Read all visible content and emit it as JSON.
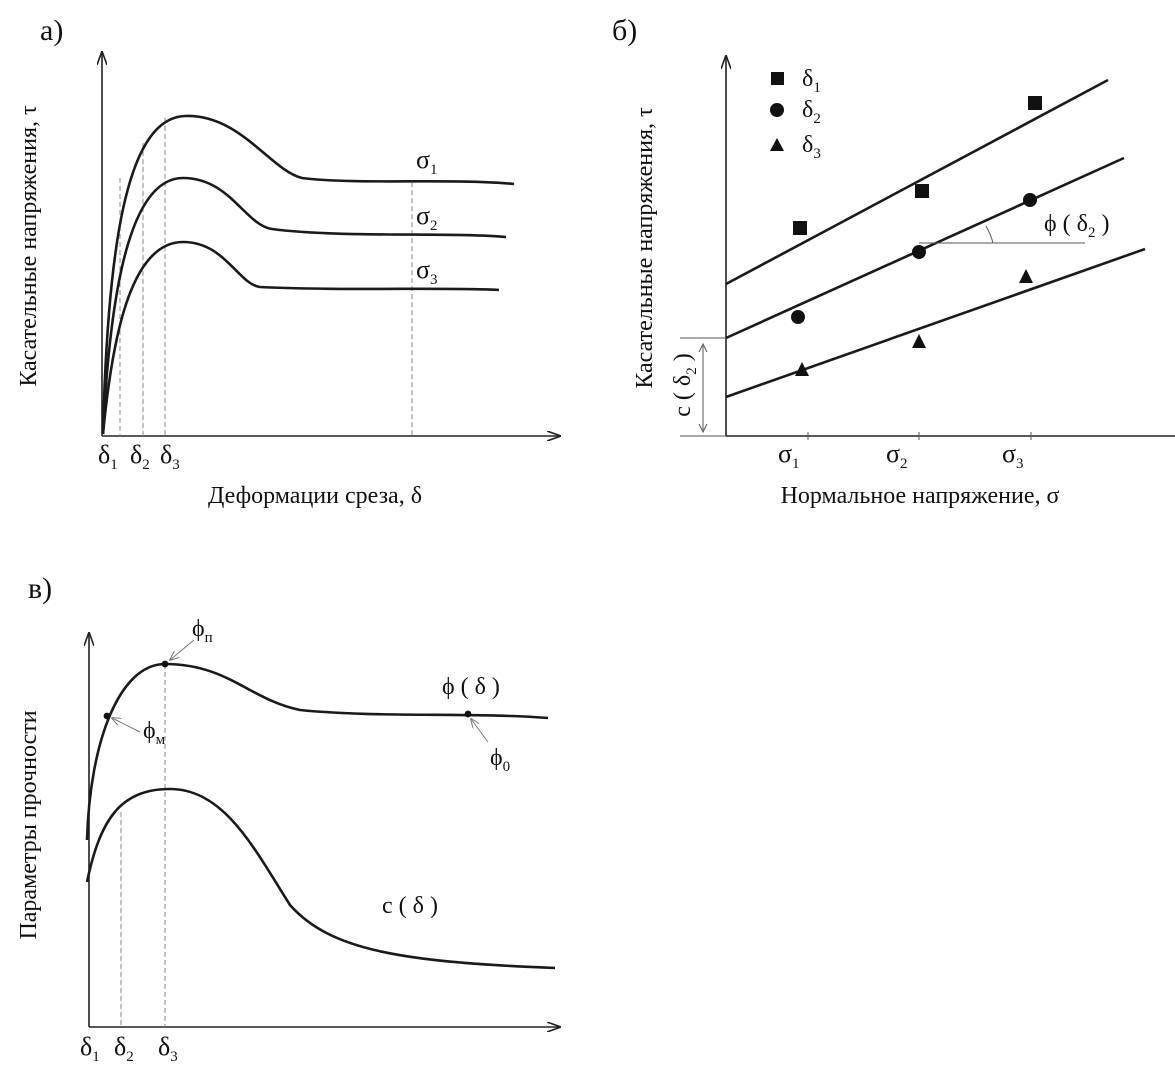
{
  "panel_a": {
    "tag": "а)",
    "ylabel": "Касательные напряжения, τ",
    "xlabel": "Деформации среза,  δ",
    "ticks": [
      {
        "base": "δ",
        "sub": "1"
      },
      {
        "base": "δ",
        "sub": "2"
      },
      {
        "base": "δ",
        "sub": "3"
      }
    ],
    "curves": [
      {
        "base": "σ",
        "sub": "1"
      },
      {
        "base": "σ",
        "sub": "2"
      },
      {
        "base": "σ",
        "sub": "3"
      }
    ]
  },
  "panel_b": {
    "tag": "б)",
    "ylabel": "Касательные напряжения, τ",
    "xlabel": "Нормальное напряжение, σ",
    "legend": [
      {
        "base": "δ",
        "sub": "1",
        "marker": "square"
      },
      {
        "base": "δ",
        "sub": "2",
        "marker": "circle"
      },
      {
        "base": "δ",
        "sub": "3",
        "marker": "triangle"
      }
    ],
    "ticks": [
      {
        "base": "σ",
        "sub": "1"
      },
      {
        "base": "σ",
        "sub": "2"
      },
      {
        "base": "σ",
        "sub": "3"
      }
    ],
    "angle_label": {
      "pre": "ϕ ( δ",
      "sub": "2",
      "post": " )"
    },
    "intercept_label": {
      "pre": "c ( δ",
      "sub": "2",
      "post": " )"
    }
  },
  "panel_c": {
    "tag": "в)",
    "ylabel": "Параметры прочности",
    "ticks": [
      {
        "base": "δ",
        "sub": "1"
      },
      {
        "base": "δ",
        "sub": "2"
      },
      {
        "base": "δ",
        "sub": "3"
      }
    ],
    "phi_curve": "ϕ ( δ )",
    "c_curve": "c ( δ )",
    "points": [
      {
        "base": "ϕ",
        "sub": "п"
      },
      {
        "base": "ϕ",
        "sub": "м"
      },
      {
        "base": "ϕ",
        "sub": "0"
      }
    ]
  }
}
